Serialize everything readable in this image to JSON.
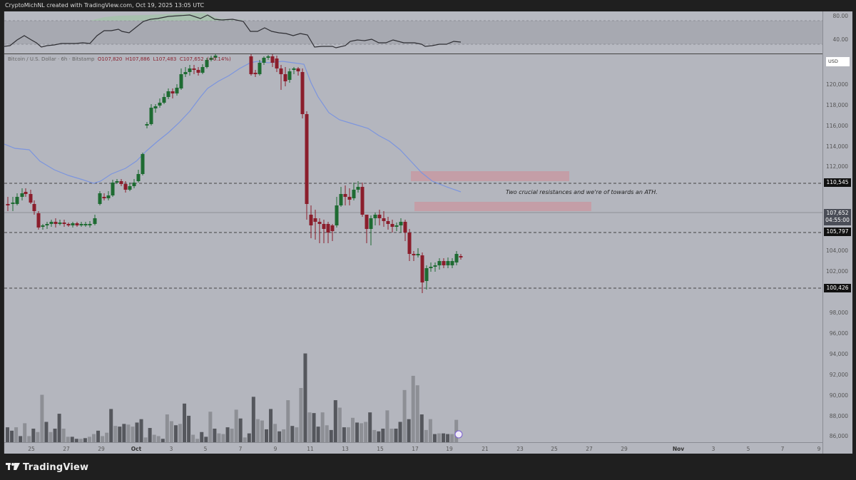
{
  "header": {
    "title": "CryptoMichNL created with TradingView.com, Oct 19, 2025 13:05 UTC"
  },
  "legend": {
    "symbol": "Bitcoin / U.S. Dollar · 6h · Bitstamp",
    "open": "O107,820",
    "high": "H107,886",
    "low": "L107,483",
    "close": "C107,652",
    "change": "(−0.14%)"
  },
  "oscillator": {
    "levels": [
      "80.00",
      "40.00"
    ]
  },
  "price_axis": {
    "currency": "USD",
    "ticks": [
      "120,000",
      "118,000",
      "116,000",
      "114,000",
      "112,000",
      "110,000",
      "108,000",
      "104,000",
      "102,000",
      "98,000",
      "96,000",
      "94,000",
      "92,000",
      "90,000",
      "88,000",
      "86,000"
    ],
    "tags": [
      {
        "label": "110,545",
        "type": "level"
      },
      {
        "label": "107,652",
        "sub": "04:55:00",
        "type": "current"
      },
      {
        "label": "105,797",
        "type": "level"
      },
      {
        "label": "100,426",
        "type": "level"
      }
    ]
  },
  "time_axis": {
    "labels": [
      "25",
      "27",
      "29",
      "Oct",
      "3",
      "5",
      "7",
      "9",
      "11",
      "13",
      "15",
      "17",
      "19",
      "21",
      "23",
      "25",
      "27",
      "29",
      "Nov",
      "3",
      "5",
      "7",
      "9"
    ]
  },
  "annotation": {
    "text": "Two crucial resistances and we're of towards an ATH."
  },
  "footer": {
    "brand": "TradingView"
  },
  "colors": {
    "up": "#1e6b32",
    "down": "#8b1e2c",
    "ma": "#7c95de",
    "zone": "#c79aa3",
    "bg": "#b4b6be"
  },
  "chart_data": {
    "type": "candlestick",
    "title": "Bitcoin / U.S. Dollar · 6h · Bitstamp",
    "ylabel": "USD",
    "ylim": [
      85500,
      122000
    ],
    "horizontal_levels": [
      110545,
      105797,
      100426
    ],
    "current_price": 107652,
    "resistance_zones": [
      [
        110500,
        111600
      ],
      [
        108300,
        108900
      ]
    ],
    "x_range": [
      "Sep 24",
      "Nov 9"
    ]
  }
}
